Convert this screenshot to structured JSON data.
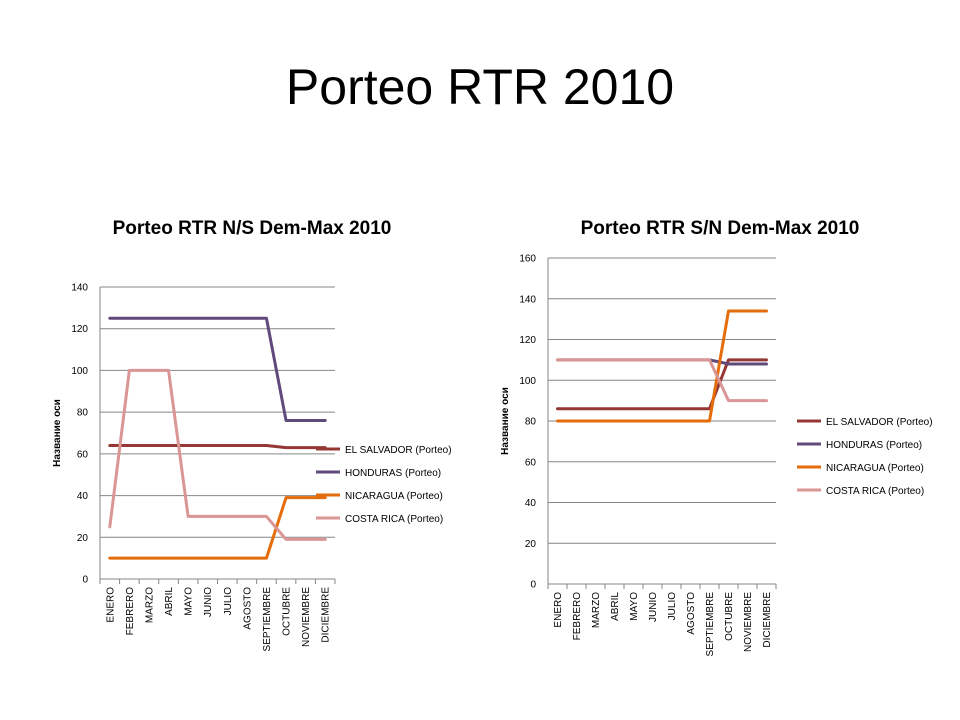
{
  "page": {
    "title": "Porteo RTR 2010"
  },
  "chart_data": [
    {
      "type": "line",
      "title": "Porteo RTR  N/S Dem-Max  2010",
      "xlabel": "",
      "ylabel": "Название оси",
      "ylim": [
        0,
        140
      ],
      "yticks": [
        0,
        20,
        40,
        60,
        80,
        100,
        120,
        140
      ],
      "grid": true,
      "legend": "right",
      "categories": [
        "ENERO",
        "FEBRERO",
        "MARZO",
        "ABRIL",
        "MAYO",
        "JUNIO",
        "JULIO",
        "AGOSTO",
        "SEPTIEMBRE",
        "OCTUBRE",
        "NOVIEMBRE",
        "DICIEMBRE"
      ],
      "series": [
        {
          "name": "EL SALVADOR (Porteo)",
          "color": "#953735",
          "values": [
            64,
            64,
            64,
            64,
            64,
            64,
            64,
            64,
            64,
            63,
            63,
            63
          ]
        },
        {
          "name": "HONDURAS (Porteo)",
          "color": "#604a7b",
          "values": [
            125,
            125,
            125,
            125,
            125,
            125,
            125,
            125,
            125,
            76,
            76,
            76
          ]
        },
        {
          "name": "NICARAGUA (Porteo)",
          "color": "#e46c0a",
          "values": [
            10,
            10,
            10,
            10,
            10,
            10,
            10,
            10,
            10,
            39,
            39,
            39
          ]
        },
        {
          "name": "COSTA RICA (Porteo)",
          "color": "#d99694",
          "values": [
            25,
            100,
            100,
            100,
            30,
            30,
            30,
            30,
            30,
            19,
            19,
            19
          ]
        }
      ]
    },
    {
      "type": "line",
      "title": "Porteo RTR S/N Dem-Max  2010",
      "xlabel": "",
      "ylabel": "Название оси",
      "ylim": [
        0,
        160
      ],
      "yticks": [
        0,
        20,
        40,
        60,
        80,
        100,
        120,
        140,
        160
      ],
      "grid": true,
      "legend": "right",
      "categories": [
        "ENERO",
        "FEBRERO",
        "MARZO",
        "ABRIL",
        "MAYO",
        "JUNIO",
        "JULIO",
        "AGOSTO",
        "SEPTIEMBRE",
        "OCTUBRE",
        "NOVIEMBRE",
        "DICIEMBRE"
      ],
      "series": [
        {
          "name": "EL SALVADOR (Porteo)",
          "color": "#953735",
          "values": [
            86,
            86,
            86,
            86,
            86,
            86,
            86,
            86,
            86,
            110,
            110,
            110
          ]
        },
        {
          "name": "HONDURAS (Porteo)",
          "color": "#604a7b",
          "values": [
            110,
            110,
            110,
            110,
            110,
            110,
            110,
            110,
            110,
            108,
            108,
            108
          ]
        },
        {
          "name": "NICARAGUA (Porteo)",
          "color": "#e46c0a",
          "values": [
            80,
            80,
            80,
            80,
            80,
            80,
            80,
            80,
            80,
            134,
            134,
            134
          ]
        },
        {
          "name": "COSTA RICA (Porteo)",
          "color": "#d99694",
          "values": [
            110,
            110,
            110,
            110,
            110,
            110,
            110,
            110,
            110,
            90,
            90,
            90
          ]
        }
      ]
    }
  ]
}
